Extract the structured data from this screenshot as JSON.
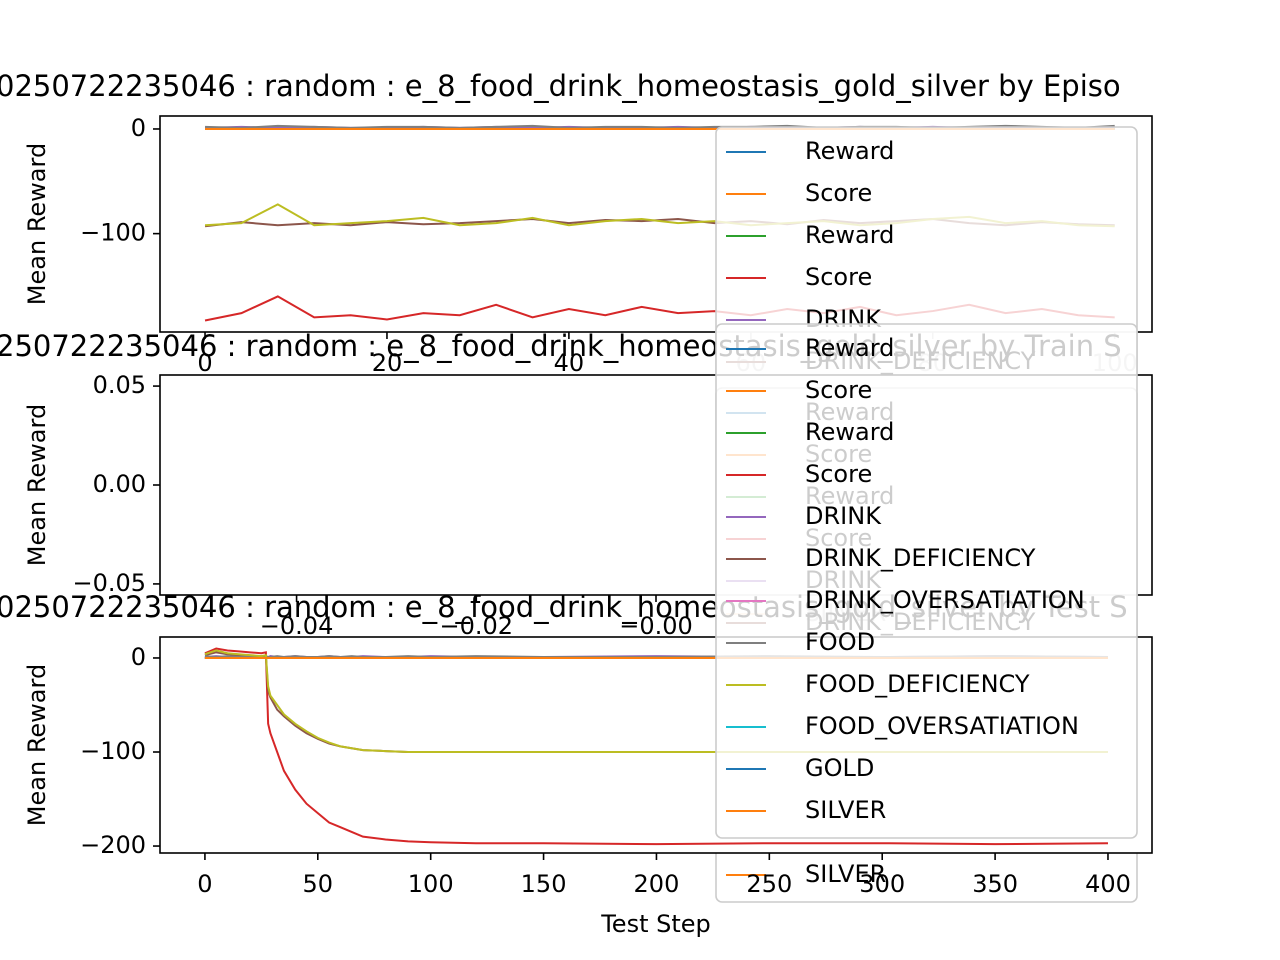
{
  "chart_data": [
    {
      "type": "line",
      "title": "0250722235046 : random : e_8_food_drink_homeostasis_gold_silver by Episo",
      "ylabel": "Mean Reward",
      "xlim": [
        -4.95,
        104.1
      ],
      "ylim": [
        -194,
        12.4
      ],
      "xticks": [
        0,
        20,
        40,
        60,
        80,
        100
      ],
      "yticks": [
        0,
        {
          "value": -100,
          "label": "−100"
        }
      ],
      "legend": "right",
      "x": [
        0,
        4,
        8,
        12,
        16,
        20,
        24,
        28,
        32,
        36,
        40,
        44,
        48,
        52,
        56,
        60,
        64,
        68,
        72,
        76,
        80,
        84,
        88,
        92,
        96,
        100
      ],
      "series": [
        {
          "name": "Reward",
          "color": "#1f77b4",
          "values": [
            0,
            1,
            0,
            1,
            0,
            0,
            1,
            0,
            1,
            0,
            0,
            1,
            0,
            1,
            0,
            0,
            1,
            0,
            1,
            0,
            0,
            1,
            0,
            1,
            0,
            1
          ]
        },
        {
          "name": "Score",
          "color": "#ff7f0e",
          "values": [
            0,
            0,
            1,
            0,
            0,
            1,
            0,
            0,
            0,
            1,
            0,
            0,
            1,
            0,
            0,
            1,
            0,
            0,
            0,
            1,
            0,
            0,
            1,
            0,
            0,
            0
          ]
        },
        {
          "name": "Reward",
          "color": "#2ca02c",
          "values": [
            0,
            0,
            0,
            0,
            0,
            0,
            0,
            0,
            0,
            0,
            0,
            0,
            0,
            0,
            0,
            0,
            0,
            0,
            0,
            0,
            0,
            0,
            0,
            0,
            0,
            0
          ]
        },
        {
          "name": "Score",
          "color": "#d62728",
          "values": [
            -183,
            -176,
            -160,
            -180,
            -178,
            -182,
            -176,
            -178,
            -168,
            -180,
            -172,
            -178,
            -170,
            -176,
            -174,
            -178,
            -172,
            -176,
            -170,
            -178,
            -174,
            -168,
            -176,
            -172,
            -178,
            -180
          ]
        },
        {
          "name": "DRINK",
          "color": "#9467bd",
          "values": [
            1,
            2,
            1,
            2,
            1,
            1,
            2,
            1,
            2,
            1,
            2,
            1,
            1,
            2,
            1,
            2,
            1,
            1,
            2,
            1,
            2,
            1,
            2,
            1,
            1,
            2
          ]
        },
        {
          "name": "DRINK_DEFICIENCY",
          "color": "#8c564b",
          "values": [
            -93,
            -89,
            -92,
            -90,
            -92,
            -89,
            -91,
            -90,
            -88,
            -86,
            -90,
            -87,
            -88,
            -86,
            -90,
            -88,
            -91,
            -87,
            -90,
            -88,
            -86,
            -90,
            -92,
            -89,
            -91,
            -92
          ]
        },
        {
          "name": "DRINK_OVERSATIATION",
          "color": "#e377c2",
          "values": [
            0,
            0,
            0,
            0,
            0,
            0,
            0,
            0,
            0,
            0,
            0,
            0,
            0,
            0,
            0,
            0,
            0,
            0,
            0,
            0,
            0,
            0,
            0,
            0,
            0,
            0
          ]
        },
        {
          "name": "FOOD",
          "color": "#7f7f7f",
          "values": [
            2,
            1,
            3,
            2,
            1,
            2,
            2,
            1,
            2,
            3,
            1,
            2,
            2,
            1,
            2,
            2,
            3,
            1,
            2,
            2,
            1,
            2,
            3,
            2,
            1,
            3
          ]
        },
        {
          "name": "FOOD_DEFICIENCY",
          "color": "#bcbd22",
          "values": [
            -92,
            -90,
            -72,
            -92,
            -90,
            -88,
            -85,
            -92,
            -90,
            -85,
            -92,
            -88,
            -86,
            -90,
            -88,
            -92,
            -90,
            -88,
            -92,
            -90,
            -86,
            -84,
            -90,
            -88,
            -92,
            -93
          ]
        },
        {
          "name": "FOOD_OVERSATIATION",
          "color": "#17becf",
          "values": [
            0,
            0,
            0,
            0,
            0,
            0,
            0,
            0,
            0,
            0,
            0,
            0,
            0,
            0,
            0,
            0,
            0,
            0,
            0,
            0,
            0,
            0,
            0,
            0,
            0,
            0
          ]
        },
        {
          "name": "GOLD",
          "color": "#1f77b4",
          "values": [
            0,
            0,
            0,
            0,
            0,
            0,
            0,
            0,
            0,
            0,
            0,
            0,
            0,
            0,
            0,
            0,
            0,
            0,
            0,
            0,
            0,
            0,
            0,
            0,
            0,
            0
          ]
        },
        {
          "name": "SILVER",
          "color": "#ff7f0e",
          "values": [
            0,
            0,
            0,
            0,
            0,
            0,
            0,
            0,
            0,
            0,
            0,
            0,
            0,
            0,
            0,
            0,
            0,
            0,
            0,
            0,
            0,
            0,
            0,
            0,
            0,
            0
          ]
        }
      ]
    },
    {
      "type": "line",
      "title": "250722235046 : random : e_8_food_drink_homeostasis_gold_silver by Train S",
      "ylabel": "Mean Reward",
      "xlim": [
        -0.0552,
        0.0552
      ],
      "ylim": [
        -0.0556,
        0.0556
      ],
      "xticks": [
        {
          "value": -0.04,
          "label": "−0.04"
        },
        {
          "value": -0.02,
          "label": "−0.02"
        },
        {
          "value": 0,
          "label": "−0.00"
        }
      ],
      "yticks": [
        {
          "value": -0.05,
          "label": "−0.05"
        },
        {
          "value": 0,
          "label": "0.00"
        },
        0.05
      ],
      "legend": "right",
      "x": [],
      "series": [
        {
          "name": "Reward",
          "color": "#1f77b4",
          "values": []
        },
        {
          "name": "Score",
          "color": "#ff7f0e",
          "values": []
        },
        {
          "name": "Reward",
          "color": "#2ca02c",
          "values": []
        },
        {
          "name": "Score",
          "color": "#d62728",
          "values": []
        },
        {
          "name": "DRINK",
          "color": "#9467bd",
          "values": []
        },
        {
          "name": "DRINK_DEFICIENCY",
          "color": "#8c564b",
          "values": []
        },
        {
          "name": "DRINK_OVERSATIATION",
          "color": "#e377c2",
          "values": []
        },
        {
          "name": "FOOD",
          "color": "#7f7f7f",
          "values": []
        },
        {
          "name": "FOOD_DEFICIENCY",
          "color": "#bcbd22",
          "values": []
        },
        {
          "name": "FOOD_OVERSATIATION",
          "color": "#17becf",
          "values": []
        },
        {
          "name": "GOLD",
          "color": "#1f77b4",
          "values": []
        },
        {
          "name": "SILVER",
          "color": "#ff7f0e",
          "values": []
        }
      ]
    },
    {
      "type": "line",
      "title": "0250722235046 : random : e_8_food_drink_homeostasis_gold_silver by Test S",
      "ylabel": "Mean Reward",
      "xlabel": "Test Step",
      "xlim": [
        -19.9,
        419.5
      ],
      "ylim": [
        -207.4,
        22.3
      ],
      "xticks": [
        0,
        50,
        100,
        150,
        200,
        250,
        300,
        350,
        400
      ],
      "yticks": [
        0,
        {
          "value": -100,
          "label": "−100"
        },
        {
          "value": -200,
          "label": "−200"
        }
      ],
      "legend": "right",
      "x": [
        0,
        5,
        10,
        15,
        20,
        25,
        27,
        28,
        29,
        32,
        35,
        40,
        45,
        50,
        55,
        60,
        65,
        70,
        80,
        90,
        100,
        120,
        150,
        200,
        250,
        300,
        350,
        400
      ],
      "series": [
        {
          "name": "Reward",
          "color": "#1f77b4",
          "values": [
            0,
            1,
            1,
            0,
            1,
            0,
            1,
            0,
            0,
            0,
            0,
            1,
            0,
            0,
            1,
            0,
            0,
            0,
            1,
            0,
            0,
            0,
            1,
            0,
            0,
            1,
            0,
            0
          ]
        },
        {
          "name": "Score",
          "color": "#ff7f0e",
          "values": [
            0,
            0,
            1,
            0,
            0,
            1,
            0,
            0,
            0,
            0,
            1,
            0,
            0,
            0,
            0,
            1,
            0,
            0,
            0,
            0,
            1,
            0,
            0,
            0,
            1,
            0,
            0,
            0
          ]
        },
        {
          "name": "Reward",
          "color": "#2ca02c",
          "values": [
            0,
            0,
            0,
            0,
            0,
            0,
            0,
            0,
            0,
            0,
            0,
            0,
            0,
            0,
            0,
            0,
            0,
            0,
            0,
            0,
            0,
            0,
            0,
            0,
            0,
            0,
            0,
            0
          ]
        },
        {
          "name": "Score",
          "color": "#d62728",
          "values": [
            5,
            10,
            8,
            7,
            6,
            5,
            6,
            -70,
            -80,
            -100,
            -120,
            -140,
            -155,
            -165,
            -175,
            -180,
            -185,
            -190,
            -193,
            -195,
            -196,
            -197,
            -197,
            -198,
            -197,
            -197,
            -198,
            -197
          ]
        },
        {
          "name": "DRINK",
          "color": "#9467bd",
          "values": [
            1,
            2,
            1,
            2,
            1,
            2,
            1,
            1,
            2,
            1,
            1,
            2,
            1,
            1,
            2,
            1,
            1,
            2,
            1,
            1,
            2,
            1,
            1,
            2,
            1,
            1,
            2,
            1
          ]
        },
        {
          "name": "DRINK_DEFICIENCY",
          "color": "#8c564b",
          "values": [
            3,
            6,
            4,
            3,
            2,
            1,
            2,
            -35,
            -42,
            -55,
            -62,
            -72,
            -80,
            -86,
            -91,
            -94,
            -96,
            -98,
            -99,
            -100,
            -100,
            -100,
            -100,
            -100,
            -100,
            -100,
            -100,
            -100
          ]
        },
        {
          "name": "DRINK_OVERSATIATION",
          "color": "#e377c2",
          "values": [
            0,
            0,
            0,
            0,
            0,
            0,
            0,
            0,
            0,
            0,
            0,
            0,
            0,
            0,
            0,
            0,
            0,
            0,
            0,
            0,
            0,
            0,
            0,
            0,
            0,
            0,
            0,
            0
          ]
        },
        {
          "name": "FOOD",
          "color": "#7f7f7f",
          "values": [
            2,
            1,
            2,
            1,
            2,
            1,
            2,
            1,
            1,
            2,
            1,
            2,
            1,
            1,
            2,
            1,
            2,
            1,
            1,
            2,
            1,
            2,
            1,
            1,
            2,
            1,
            2,
            1
          ]
        },
        {
          "name": "FOOD_DEFICIENCY",
          "color": "#bcbd22",
          "values": [
            4,
            8,
            5,
            4,
            3,
            2,
            3,
            -30,
            -40,
            -50,
            -60,
            -70,
            -78,
            -85,
            -90,
            -94,
            -96,
            -98,
            -99,
            -100,
            -100,
            -100,
            -100,
            -100,
            -100,
            -100,
            -100,
            -100
          ]
        },
        {
          "name": "FOOD_OVERSATIATION",
          "color": "#17becf",
          "values": [
            0,
            0,
            0,
            0,
            0,
            0,
            0,
            0,
            0,
            0,
            0,
            0,
            0,
            0,
            0,
            0,
            0,
            0,
            0,
            0,
            0,
            0,
            0,
            0,
            0,
            0,
            0,
            0
          ]
        },
        {
          "name": "GOLD",
          "color": "#1f77b4",
          "values": [
            0,
            0,
            0,
            0,
            0,
            0,
            0,
            0,
            0,
            0,
            0,
            0,
            0,
            0,
            0,
            0,
            0,
            0,
            0,
            0,
            0,
            0,
            0,
            0,
            0,
            0,
            0,
            0
          ]
        },
        {
          "name": "SILVER",
          "color": "#ff7f0e",
          "values": [
            0,
            0,
            0,
            0,
            0,
            0,
            0,
            0,
            0,
            0,
            0,
            0,
            0,
            0,
            0,
            0,
            0,
            0,
            0,
            0,
            0,
            0,
            0,
            0,
            0,
            0,
            0,
            0
          ]
        }
      ]
    }
  ]
}
